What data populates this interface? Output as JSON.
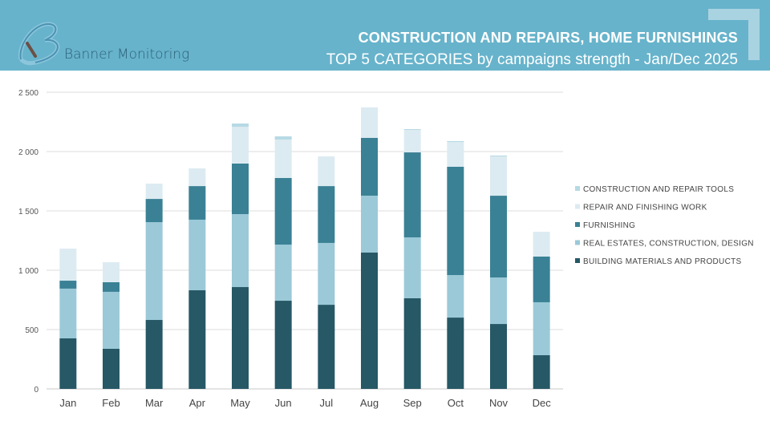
{
  "header": {
    "brand": "Banner Monitoring",
    "title": "CONSTRUCTION AND REPAIRS, HOME FURNISHINGS",
    "subtitle": "TOP 5 CATEGORIES by campaigns strength - Jan/Dec 2025"
  },
  "chart_data": {
    "type": "bar",
    "stacked": true,
    "categories": [
      "Jan",
      "Feb",
      "Mar",
      "Apr",
      "May",
      "Jun",
      "Jul",
      "Aug",
      "Sep",
      "Oct",
      "Nov",
      "Dec"
    ],
    "ylim": [
      0,
      2500
    ],
    "yticks": [
      0,
      500,
      1000,
      1500,
      2000,
      2500
    ],
    "ytick_labels": [
      "0",
      "500",
      "1 000",
      "1 500",
      "2 000",
      "2 500"
    ],
    "grid": true,
    "legend_position": "right",
    "series": [
      {
        "name": "BUILDING MATERIALS AND PRODUCTS",
        "color": "#265866",
        "values": [
          426,
          338,
          581,
          831,
          858,
          743,
          709,
          1149,
          764,
          601,
          547,
          284
        ]
      },
      {
        "name": "REAL ESTATES, CONSTRUCTION, DESIGN",
        "color": "#9bc9d8",
        "values": [
          419,
          480,
          824,
          595,
          615,
          473,
          521,
          479,
          513,
          358,
          392,
          446
        ]
      },
      {
        "name": "FURNISHING",
        "color": "#3a8195",
        "values": [
          67,
          81,
          196,
          283,
          426,
          561,
          479,
          487,
          716,
          913,
          689,
          385
        ]
      },
      {
        "name": "REPAIR AND FINISHING WORK",
        "color": "#dcebf1",
        "values": [
          270,
          169,
          129,
          149,
          310,
          324,
          250,
          257,
          189,
          209,
          331,
          209
        ]
      },
      {
        "name": "CONSTRUCTION AND REPAIR TOOLS",
        "color": "#b6d9e5",
        "values": [
          0,
          0,
          0,
          0,
          27,
          27,
          0,
          0,
          7,
          7,
          7,
          0
        ]
      }
    ]
  }
}
